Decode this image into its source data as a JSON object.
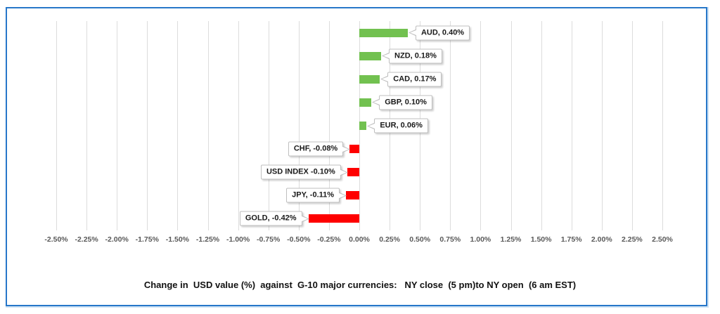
{
  "chart_data": {
    "type": "bar",
    "orientation": "horizontal",
    "title": "Change in  USD value (%)  against  G-10 major currencies:   NY close  (5 pm)to NY open  (6 am EST)",
    "categories": [
      "AUD",
      "NZD",
      "CAD",
      "GBP",
      "EUR",
      "CHF",
      "USD INDEX",
      "JPY",
      "GOLD"
    ],
    "values": [
      0.4,
      0.18,
      0.17,
      0.1,
      0.06,
      -0.08,
      -0.1,
      -0.11,
      -0.42
    ],
    "data_labels": [
      "AUD, 0.40%",
      "NZD, 0.18%",
      "CAD, 0.17%",
      "GBP, 0.10%",
      "EUR, 0.06%",
      "CHF, -0.08%",
      "USD INDEX -0.10%",
      "JPY, -0.11%",
      "GOLD, -0.42%"
    ],
    "x_ticks": [
      "-2.50%",
      "-2.25%",
      "-2.00%",
      "-1.75%",
      "-1.50%",
      "-1.25%",
      "-1.00%",
      "-0.75%",
      "-0.50%",
      "-0.25%",
      "0.00%",
      "0.25%",
      "0.50%",
      "0.75%",
      "1.00%",
      "1.25%",
      "1.50%",
      "1.75%",
      "2.00%",
      "2.25%",
      "2.50%"
    ],
    "xlim": [
      -2.5,
      2.5
    ],
    "grid": true,
    "legend": "none",
    "colors": {
      "positive_bar": "#72C150",
      "negative_bar": "#FE0000",
      "gridline": "#DCDCDC",
      "tick_label": "#595959",
      "callout_border": "#BFBFBF",
      "frame_border": "#2777C9"
    }
  }
}
